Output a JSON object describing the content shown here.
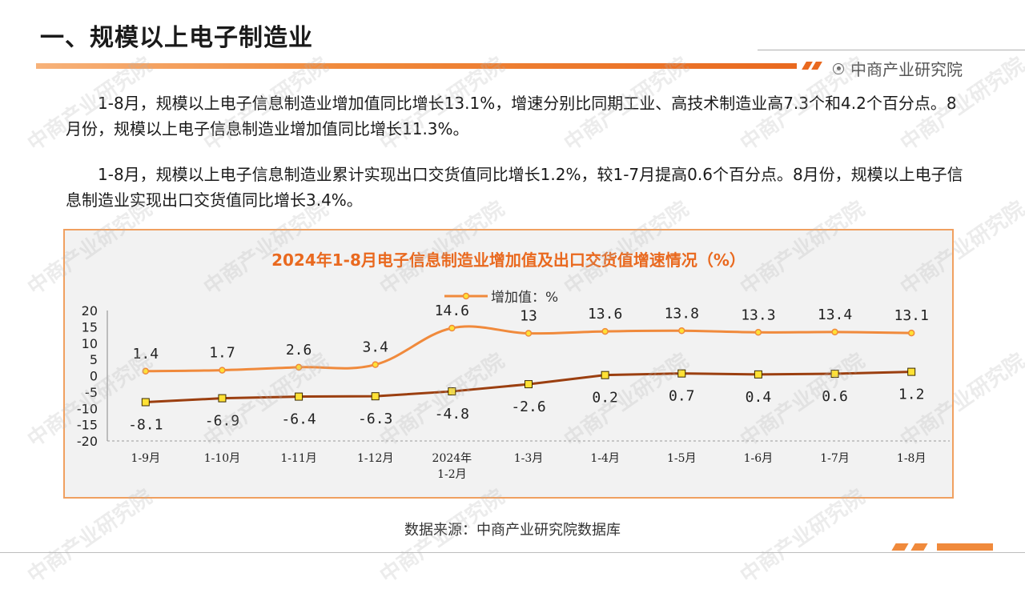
{
  "header": {
    "title": "一、规模以上电子制造业",
    "brand": "中商产业研究院"
  },
  "paragraphs": [
    "1-8月，规模以上电子信息制造业增加值同比增长13.1%，增速分别比同期工业、高技术制造业高7.3个和4.2个百分点。8月份，规模以上电子信息制造业增加值同比增长11.3%。",
    "1-8月，规模以上电子信息制造业累计实现出口交货值同比增长1.2%，较1-7月提高0.6个百分点。8月份，规模以上电子信息制造业实现出口交货值同比增长3.4%。"
  ],
  "source": "数据来源：中商产业研究院数据库",
  "watermark": "中商产业研究院",
  "colors": {
    "accent": "#e9691f",
    "series_added_value": "#f08a3c",
    "series_export": "#9b3f10",
    "marker_fill": "#ffe135",
    "chart_title": "#e9691f"
  },
  "chart_data": {
    "type": "line",
    "title": "2024年1-8月电子信息制造业增加值及出口交货值增速情况（%）",
    "categories": [
      "1-9月",
      "1-10月",
      "1-11月",
      "1-12月",
      "2024年1-2月",
      "1-3月",
      "1-4月",
      "1-5月",
      "1-6月",
      "1-7月",
      "1-8月"
    ],
    "category_lines": [
      [
        "1-9月"
      ],
      [
        "1-10月"
      ],
      [
        "1-11月"
      ],
      [
        "1-12月"
      ],
      [
        "2024年",
        "1-2月"
      ],
      [
        "1-3月"
      ],
      [
        "1-4月"
      ],
      [
        "1-5月"
      ],
      [
        "1-6月"
      ],
      [
        "1-7月"
      ],
      [
        "1-8月"
      ]
    ],
    "series": [
      {
        "name": "增加值：%",
        "values": [
          1.4,
          1.7,
          2.6,
          3.4,
          14.6,
          13,
          13.6,
          13.8,
          13.3,
          13.4,
          13.1
        ],
        "labels": [
          "1.4",
          "1.7",
          "2.6",
          "3.4",
          "14.6",
          "13",
          "13.6",
          "13.8",
          "13.3",
          "13.4",
          "13.1"
        ],
        "smooth": true,
        "marker": "circle"
      },
      {
        "values": [
          -8.1,
          -6.9,
          -6.4,
          -6.3,
          -4.8,
          -2.6,
          0.2,
          0.7,
          0.4,
          0.6,
          1.2
        ],
        "labels": [
          "-8.1",
          "-6.9",
          "-6.4",
          "-6.3",
          "-4.8",
          "-2.6",
          "0.2",
          "0.7",
          "0.4",
          "0.6",
          "1.2"
        ],
        "smooth": false,
        "marker": "square"
      }
    ],
    "yticks": [
      "20",
      "15",
      "10",
      "5",
      "0",
      "-5",
      "-10",
      "-15",
      "-20"
    ],
    "ylim": [
      -20,
      20
    ],
    "legend": "top-center",
    "grid": false
  }
}
